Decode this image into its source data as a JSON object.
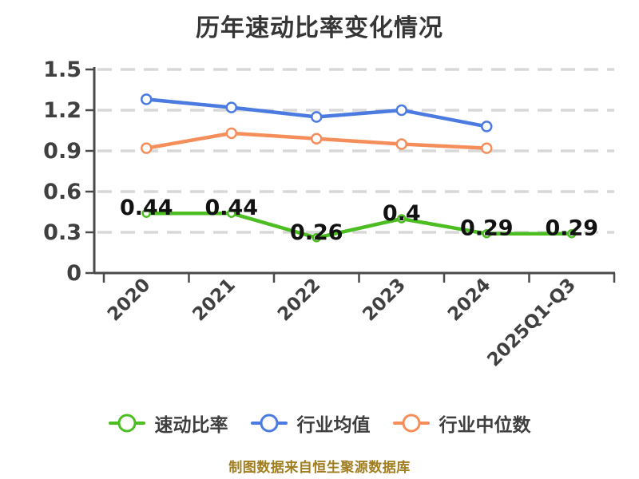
{
  "title": "历年速动比率变化情况",
  "footer_note": "制图数据来自恒生聚源数据库",
  "colors": {
    "quick_ratio": "#4cbe22",
    "industry_average": "#4b7be0",
    "industry_median": "#f68e5b",
    "grid": "#d8d8d8",
    "axis": "#4a4a4a",
    "title_text": "#363636",
    "data_label_text": "#121212",
    "footer_text": "#a07d1e",
    "marker_fill": "#ffffff"
  },
  "chart_data": {
    "type": "line",
    "title": "历年速动比率变化情况",
    "categories": [
      "2020",
      "2021",
      "2022",
      "2023",
      "2024",
      "2025Q1-Q3"
    ],
    "series": [
      {
        "id": "quick-ratio",
        "name": "速动比率",
        "color": "#4cbe22",
        "values": [
          0.44,
          0.44,
          0.26,
          0.4,
          0.29,
          0.29
        ],
        "data_labels": [
          "0.44",
          "0.44",
          "0.26",
          "0.4",
          "0.29",
          "0.29"
        ]
      },
      {
        "id": "industry-average",
        "name": "行业均值",
        "color": "#4b7be0",
        "values": [
          1.28,
          1.22,
          1.15,
          1.2,
          1.08
        ],
        "data_labels": []
      },
      {
        "id": "industry-median",
        "name": "行业中位数",
        "color": "#f68e5b",
        "values": [
          0.92,
          1.03,
          0.99,
          0.95,
          0.92
        ],
        "data_labels": []
      }
    ],
    "ylim": [
      0,
      1.5
    ],
    "yticks": [
      "0",
      "0.3",
      "0.6",
      "0.9",
      "1.2",
      "1.5"
    ],
    "grid": true,
    "grid_style": "dashed",
    "legend_position": "bottom",
    "x_label_rotation_deg": 45
  }
}
